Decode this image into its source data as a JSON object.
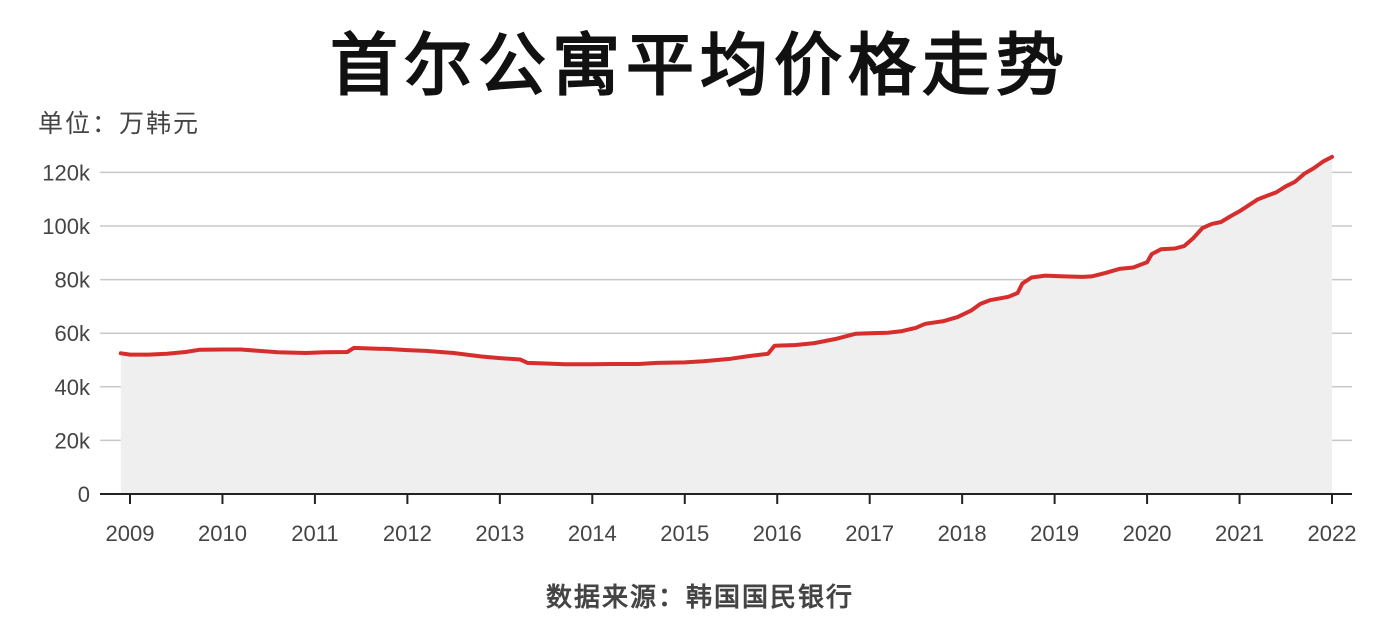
{
  "chart_data": {
    "type": "area",
    "title": "首尔公寓平均价格走势",
    "unit_label": "单位：万韩元",
    "source": "数据来源：韩国国民银行",
    "xlabel": "",
    "ylabel": "",
    "xlim": [
      2008.9,
      2022.0
    ],
    "ylim": [
      0,
      125000
    ],
    "y_ticks": [
      0,
      20000,
      40000,
      60000,
      80000,
      100000,
      120000
    ],
    "y_tick_labels": [
      "0",
      "20k",
      "40k",
      "60k",
      "80k",
      "100k",
      "120k"
    ],
    "x_ticks": [
      2009,
      2010,
      2011,
      2012,
      2013,
      2014,
      2015,
      2016,
      2017,
      2018,
      2019,
      2020,
      2021,
      2022
    ],
    "x_tick_labels": [
      "2009",
      "2010",
      "2011",
      "2012",
      "2013",
      "2014",
      "2015",
      "2016",
      "2017",
      "2018",
      "2019",
      "2020",
      "2021",
      "2022"
    ],
    "grid": true,
    "colors": {
      "line": "#d62d2d",
      "area": "#efefef",
      "grid": "#c8c8c8",
      "axis": "#222222"
    },
    "series": [
      {
        "x": [
          2008.9,
          2009.0,
          2009.2,
          2009.4,
          2009.6,
          2009.75,
          2010.0,
          2010.2,
          2010.4,
          2010.6,
          2010.9,
          2011.1,
          2011.35,
          2011.42,
          2011.6,
          2011.8,
          2012.0,
          2012.2,
          2012.5,
          2012.8,
          2013.0,
          2013.22,
          2013.3,
          2013.5,
          2013.7,
          2014.0,
          2014.2,
          2014.5,
          2014.7,
          2015.0,
          2015.2,
          2015.5,
          2015.7,
          2015.9,
          2015.97,
          2016.2,
          2016.4,
          2016.65,
          2016.85,
          2017.0,
          2017.2,
          2017.35,
          2017.5,
          2017.6,
          2017.8,
          2017.95,
          2018.1,
          2018.2,
          2018.3,
          2018.5,
          2018.6,
          2018.65,
          2018.75,
          2018.9,
          2019.1,
          2019.3,
          2019.4,
          2019.55,
          2019.7,
          2019.85,
          2020.0,
          2020.05,
          2020.15,
          2020.3,
          2020.4,
          2020.5,
          2020.6,
          2020.7,
          2020.8,
          2020.9,
          2021.0,
          2021.2,
          2021.4,
          2021.5,
          2021.6,
          2021.7,
          2021.8,
          2021.9,
          2022.0
        ],
        "y": [
          52500,
          52000,
          52000,
          52300,
          53000,
          53800,
          53900,
          53900,
          53400,
          52900,
          52600,
          52900,
          53000,
          54500,
          54300,
          54100,
          53700,
          53400,
          52600,
          51300,
          50700,
          50200,
          48900,
          48700,
          48400,
          48400,
          48500,
          48500,
          48900,
          49100,
          49500,
          50500,
          51500,
          52300,
          55300,
          55600,
          56300,
          58000,
          59800,
          60000,
          60200,
          60800,
          62000,
          63500,
          64500,
          66000,
          68500,
          71000,
          72300,
          73600,
          75000,
          78500,
          80800,
          81500,
          81200,
          81000,
          81200,
          82500,
          84000,
          84500,
          86500,
          89500,
          91300,
          91600,
          92500,
          95500,
          99300,
          100800,
          101500,
          103600,
          105500,
          110000,
          112600,
          114800,
          116500,
          119500,
          121500,
          124000,
          125800
        ]
      }
    ]
  }
}
